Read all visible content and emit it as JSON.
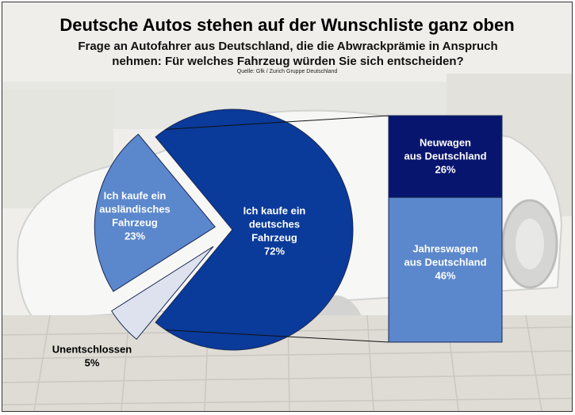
{
  "header": {
    "title": "Deutsche Autos stehen auf der Wunschliste ganz oben",
    "subtitle_line1": "Frage an Autofahrer aus Deutschland, die die Abwrackprämie in Anspruch",
    "subtitle_line2": "nehmen: Für welches Fahrzeug würden Sie sich entscheiden?",
    "source": "Quelle: Gfk / Zurich Gruppe Deutschland"
  },
  "colors": {
    "german": "#0a3a9a",
    "foreign": "#5b87cc",
    "undecided": "#dde2ee",
    "new_car": "#08156e",
    "used_car": "#5b87cc"
  },
  "chart_data": {
    "type": "pie",
    "slices": [
      {
        "label_lines": [
          "Ich kaufe ein",
          "deutsches",
          "Fahrzeug"
        ],
        "value": 72,
        "value_label": "72%"
      },
      {
        "label_lines": [
          "Ich kaufe ein",
          "ausländisches",
          "Fahrzeug"
        ],
        "value": 23,
        "value_label": "23%"
      },
      {
        "label_lines": [
          "Unentschlossen"
        ],
        "value": 5,
        "value_label": "5%"
      }
    ],
    "breakdown": {
      "of": "Ich kaufe ein deutsches Fahrzeug",
      "segments": [
        {
          "label_lines": [
            "Neuwagen",
            "aus Deutschland"
          ],
          "value": 26,
          "value_label": "26%"
        },
        {
          "label_lines": [
            "Jahreswagen",
            "aus Deutschland"
          ],
          "value": 46,
          "value_label": "46%"
        }
      ]
    }
  }
}
